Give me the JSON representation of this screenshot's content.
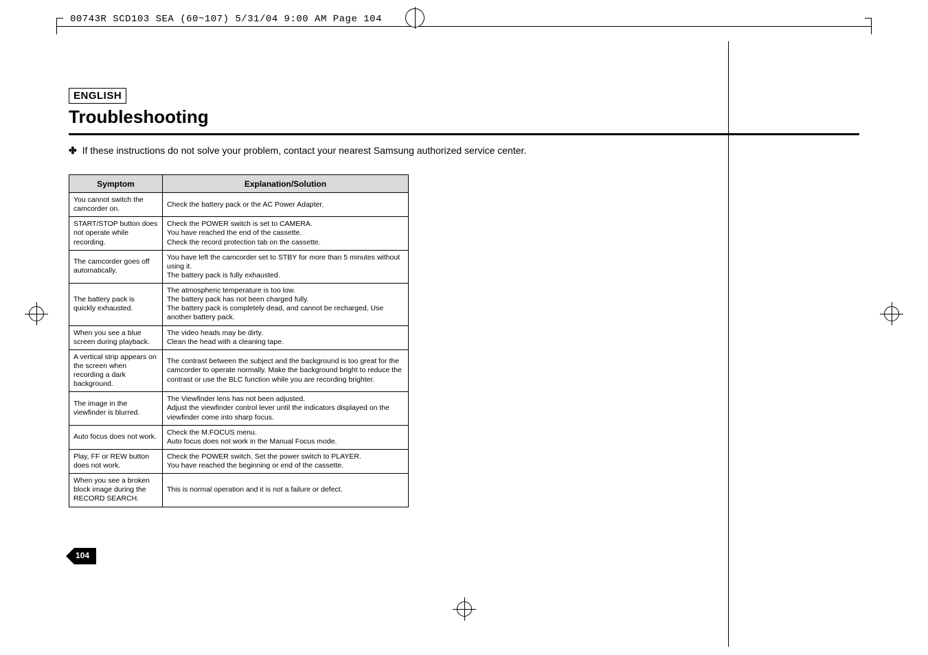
{
  "slug": {
    "text": "00743R SCD103 SEA (60~107)  5/31/04 9:00 AM  Page 104"
  },
  "header": {
    "language": "ENGLISH",
    "title": "Troubleshooting",
    "intro_bullet": "✤",
    "intro_text": "If these instructions do not solve your problem, contact your nearest Samsung authorized service center."
  },
  "table": {
    "header_symptom": "Symptom",
    "header_explanation": "Explanation/Solution",
    "rows": [
      {
        "symptom": "You cannot switch the camcorder on.",
        "explanation": "Check the battery pack or the AC Power Adapter."
      },
      {
        "symptom": "START/STOP button does not operate while recording.",
        "explanation": "Check the POWER switch is set to CAMERA.\nYou have reached the end of the cassette.\nCheck the record protection tab on the cassette."
      },
      {
        "symptom": "The camcorder goes off automatically.",
        "explanation": "You have left the camcorder set to STBY for more than 5 minutes without using it.\nThe battery pack is fully exhausted."
      },
      {
        "symptom": "The battery pack is quickly exhausted.",
        "explanation": "The atmospheric temperature is too low.\nThe battery pack has not been charged fully.\nThe battery pack is completely dead, and cannot be recharged, Use another battery pack."
      },
      {
        "symptom": "When you see a blue screen during playback.",
        "explanation": "The video heads may be dirty.\nClean the head with a cleaning tape."
      },
      {
        "symptom": "A vertical strip appears on the screen when recording a dark background.",
        "explanation": "The contrast between the subject and the background is too great for the camcorder to operate normally. Make the background bright to reduce the contrast or use the BLC function while you are recording brighter."
      },
      {
        "symptom": "The image in the viewfinder is blurred.",
        "explanation": "The Viewfinder lens has not been adjusted.\nAdjust the viewfinder control lever until the indicators displayed on the viewfinder come into  sharp focus."
      },
      {
        "symptom": "Auto focus does not work.",
        "explanation": "Check the M.FOCUS menu.\nAuto focus does not work in the Manual Focus mode."
      },
      {
        "symptom": "Play, FF or REW button does not work.",
        "explanation": "Check the POWER switch. Set the power switch to PLAYER.\nYou have reached the beginning or end of the cassette."
      },
      {
        "symptom": "When you see a broken block image during the RECORD SEARCH.",
        "explanation": "This is normal operation and it is not a failure or defect."
      }
    ]
  },
  "page_number": "104",
  "colors": {
    "header_bg": "#d9d9d9",
    "tab_fill": "#000000",
    "tab_text": "#ffffff"
  }
}
